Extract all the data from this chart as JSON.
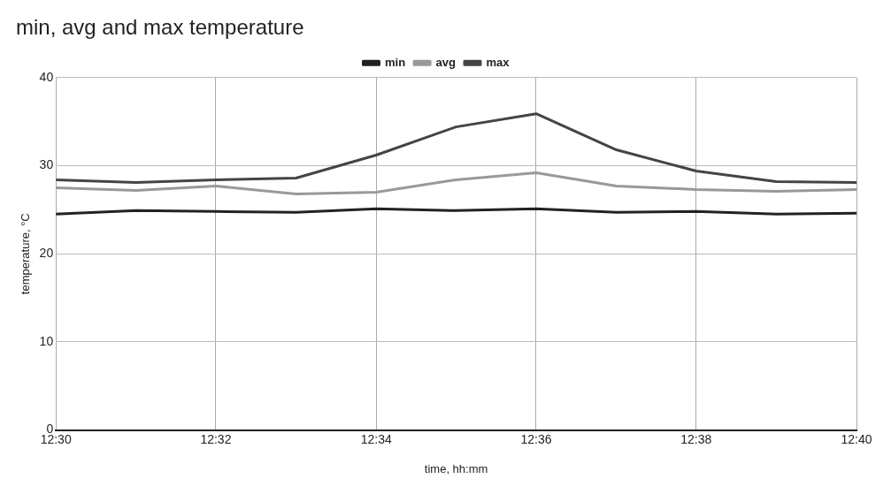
{
  "chart_data": {
    "type": "line",
    "title": "min, avg and max temperature",
    "xlabel": "time, hh:mm",
    "ylabel": "temperature, °C",
    "x": [
      12.5,
      12.5167,
      12.5333,
      12.55,
      12.5667,
      12.5833,
      12.6,
      12.6167,
      12.6333,
      12.65,
      12.6667
    ],
    "series": [
      {
        "name": "min",
        "color": "#222222",
        "values": [
          24.5,
          24.9,
          24.8,
          24.7,
          25.1,
          24.9,
          25.1,
          24.7,
          24.8,
          24.5,
          24.6
        ]
      },
      {
        "name": "avg",
        "color": "#999999",
        "values": [
          27.5,
          27.2,
          27.7,
          26.8,
          27.0,
          28.4,
          29.2,
          27.7,
          27.3,
          27.1,
          27.3
        ]
      },
      {
        "name": "max",
        "color": "#444444",
        "values": [
          28.4,
          28.1,
          28.4,
          28.6,
          31.2,
          34.4,
          35.9,
          31.8,
          29.4,
          28.2,
          28.1
        ]
      }
    ],
    "xlim": [
      12.5,
      12.6667
    ],
    "xticks": [
      {
        "value": 12.5,
        "label": "12:30"
      },
      {
        "value": 12.5333,
        "label": "12:32"
      },
      {
        "value": 12.5667,
        "label": "12:34"
      },
      {
        "value": 12.6,
        "label": "12:36"
      },
      {
        "value": 12.6333,
        "label": "12:38"
      },
      {
        "value": 12.6667,
        "label": "12:40"
      }
    ],
    "ylim": [
      0,
      40
    ],
    "yticks": [
      0,
      10,
      20,
      30,
      40
    ],
    "grid": true,
    "legend": "top",
    "marker": "none",
    "line_style": "solid"
  }
}
